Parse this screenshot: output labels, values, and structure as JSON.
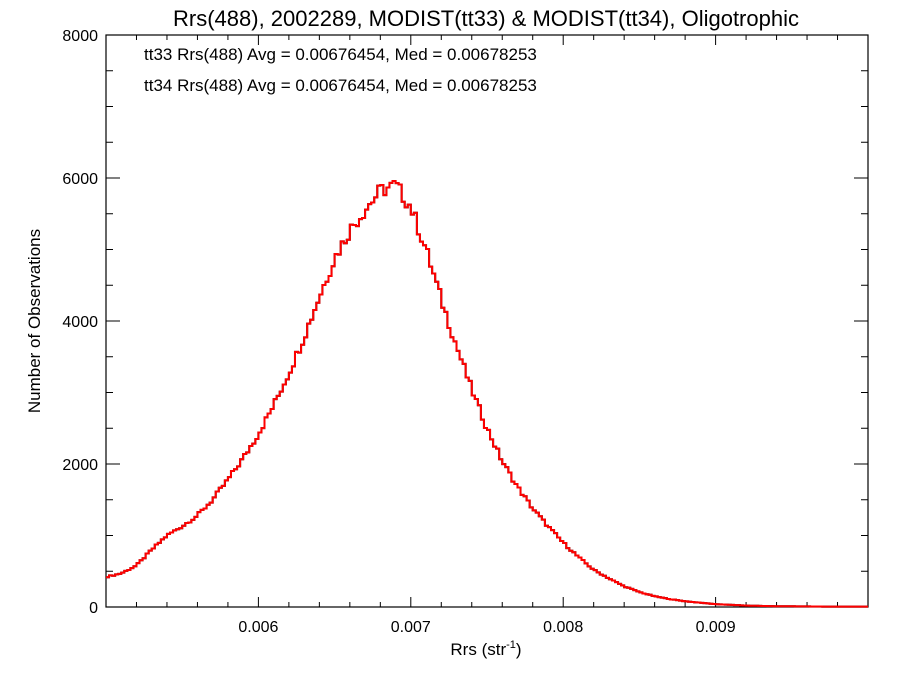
{
  "chart_data": {
    "type": "line",
    "title": "Rrs(488), 2002289, MODIST(tt33) & MODIST(tt34), Oligotrophic",
    "xlabel": "Rrs (str",
    "xlabel_sup": "-1",
    "xlabel_end": ")",
    "ylabel": "Number of Observations",
    "xlim": [
      0.005,
      0.01
    ],
    "ylim": [
      0,
      8000
    ],
    "x_ticks": [
      0.006,
      0.007,
      0.008,
      0.009
    ],
    "x_tick_labels": [
      "0.006",
      "0.007",
      "0.008",
      "0.009"
    ],
    "y_ticks": [
      0,
      2000,
      4000,
      6000,
      8000
    ],
    "y_tick_labels": [
      "0",
      "2000",
      "4000",
      "6000",
      "8000"
    ],
    "annotations": [
      {
        "text": "tt33 Rrs(488) Avg = 0.00676454, Med = 0.00678253",
        "color": "#000000"
      },
      {
        "text": "tt34 Rrs(488) Avg = 0.00676454, Med = 0.00678253",
        "color": "#ff0000"
      }
    ],
    "series": [
      {
        "color": "#000000",
        "x": [
          0.005,
          0.0051,
          0.0052,
          0.0053,
          0.0054,
          0.0055,
          0.0056,
          0.0057,
          0.0058,
          0.0059,
          0.006,
          0.0061,
          0.0062,
          0.0063,
          0.0064,
          0.0065,
          0.0066,
          0.0067,
          0.0068,
          0.0069,
          0.007,
          0.0071,
          0.0072,
          0.0073,
          0.0074,
          0.0075,
          0.0076,
          0.0077,
          0.0078,
          0.0079,
          0.008,
          0.0081,
          0.0082,
          0.0083,
          0.0084,
          0.0085,
          0.0086,
          0.0087,
          0.0088,
          0.0089,
          0.009,
          0.0091,
          0.0092,
          0.0093,
          0.0094,
          0.0095,
          0.0096,
          0.0097,
          0.0098,
          0.0099,
          0.01
        ],
        "y": [
          420,
          470,
          580,
          800,
          1000,
          1130,
          1280,
          1500,
          1780,
          2080,
          2420,
          2820,
          3270,
          3780,
          4340,
          4880,
          5270,
          5560,
          5820,
          5900,
          5600,
          5000,
          4300,
          3650,
          3040,
          2500,
          2040,
          1680,
          1380,
          1130,
          900,
          700,
          520,
          400,
          290,
          210,
          150,
          110,
          80,
          60,
          40,
          30,
          20,
          15,
          10,
          10,
          8,
          6,
          5,
          5,
          5
        ]
      },
      {
        "color": "#ff0000",
        "x": [
          0.005,
          0.0051,
          0.0052,
          0.0053,
          0.0054,
          0.0055,
          0.0056,
          0.0057,
          0.0058,
          0.0059,
          0.006,
          0.0061,
          0.0062,
          0.0063,
          0.0064,
          0.0065,
          0.0066,
          0.0067,
          0.0068,
          0.0069,
          0.007,
          0.0071,
          0.0072,
          0.0073,
          0.0074,
          0.0075,
          0.0076,
          0.0077,
          0.0078,
          0.0079,
          0.008,
          0.0081,
          0.0082,
          0.0083,
          0.0084,
          0.0085,
          0.0086,
          0.0087,
          0.0088,
          0.0089,
          0.009,
          0.0091,
          0.0092,
          0.0093,
          0.0094,
          0.0095,
          0.0096,
          0.0097,
          0.0098,
          0.0099,
          0.01
        ],
        "y": [
          420,
          470,
          580,
          800,
          1000,
          1130,
          1280,
          1500,
          1780,
          2080,
          2420,
          2820,
          3270,
          3780,
          4340,
          4880,
          5270,
          5560,
          5820,
          5900,
          5600,
          5000,
          4300,
          3650,
          3040,
          2500,
          2040,
          1680,
          1380,
          1130,
          900,
          700,
          520,
          400,
          290,
          210,
          150,
          110,
          80,
          60,
          40,
          30,
          20,
          15,
          10,
          10,
          8,
          6,
          5,
          5,
          5
        ]
      }
    ],
    "grid": false,
    "legend": "none"
  }
}
